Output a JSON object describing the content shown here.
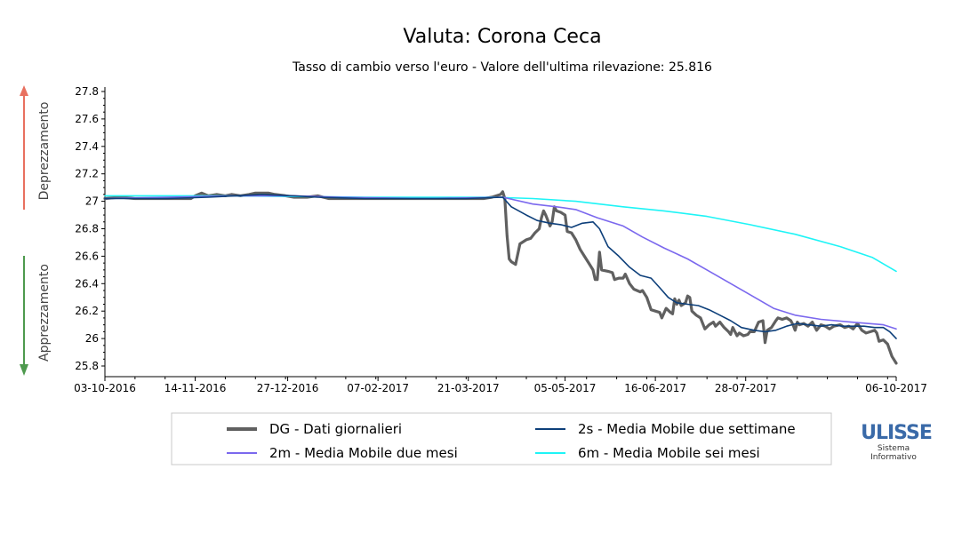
{
  "chart_data": {
    "type": "line",
    "title": "Valuta: Corona Ceca",
    "subtitle": "Tasso di cambio verso l'euro - Valore dell'ultima rilevazione: 25.816",
    "y_label_up": "Deprezzamento",
    "y_label_down": "Apprezzamento",
    "ylim": [
      25.75,
      27.82
    ],
    "y_ticks": [
      27.8,
      27.6,
      27.4,
      27.2,
      27.0,
      26.8,
      26.6,
      26.4,
      26.2,
      26.0,
      25.8
    ],
    "y_tick_labels": [
      "27.8",
      "27.6",
      "27.4",
      "27.2",
      "27",
      "26.8",
      "26.6",
      "26.4",
      "26.2",
      "26",
      "25.8"
    ],
    "xlim": [
      "2016-10-03",
      "2017-10-06"
    ],
    "x_ticks": [
      "2016-10-03",
      "2016-11-14",
      "2016-12-27",
      "2017-02-07",
      "2017-03-21",
      "2017-05-05",
      "2017-06-16",
      "2017-07-28",
      "2017-10-06"
    ],
    "x_tick_labels": [
      "03-10-2016",
      "14-11-2016",
      "27-12-2016",
      "07-02-2017",
      "21-03-2017",
      "05-05-2017",
      "16-06-2017",
      "28-07-2017",
      "06-10-2017"
    ],
    "grid": false,
    "legend_position": "bottom",
    "series": [
      {
        "key": "DG",
        "name": "DG - Dati giornalieri",
        "color": "#606060",
        "points": [
          [
            "2016-10-03",
            27.02
          ],
          [
            "2016-10-10",
            27.03
          ],
          [
            "2016-10-17",
            27.02
          ],
          [
            "2016-10-24",
            27.02
          ],
          [
            "2016-10-31",
            27.02
          ],
          [
            "2016-11-07",
            27.02
          ],
          [
            "2016-11-12",
            27.02
          ],
          [
            "2016-11-14",
            27.04
          ],
          [
            "2016-11-17",
            27.06
          ],
          [
            "2016-11-20",
            27.04
          ],
          [
            "2016-11-24",
            27.05
          ],
          [
            "2016-11-28",
            27.04
          ],
          [
            "2016-12-01",
            27.05
          ],
          [
            "2016-12-05",
            27.04
          ],
          [
            "2016-12-09",
            27.05
          ],
          [
            "2016-12-12",
            27.06
          ],
          [
            "2016-12-18",
            27.06
          ],
          [
            "2016-12-21",
            27.05
          ],
          [
            "2016-12-26",
            27.04
          ],
          [
            "2016-12-30",
            27.03
          ],
          [
            "2017-01-05",
            27.03
          ],
          [
            "2017-01-10",
            27.04
          ],
          [
            "2017-01-15",
            27.02
          ],
          [
            "2017-01-25",
            27.02
          ],
          [
            "2017-02-05",
            27.02
          ],
          [
            "2017-02-20",
            27.02
          ],
          [
            "2017-03-05",
            27.02
          ],
          [
            "2017-03-20",
            27.02
          ],
          [
            "2017-03-28",
            27.02
          ],
          [
            "2017-04-01",
            27.03
          ],
          [
            "2017-04-05",
            27.05
          ],
          [
            "2017-04-06",
            27.07
          ],
          [
            "2017-04-07",
            27.02
          ],
          [
            "2017-04-08",
            26.75
          ],
          [
            "2017-04-09",
            26.58
          ],
          [
            "2017-04-10",
            26.56
          ],
          [
            "2017-04-12",
            26.54
          ],
          [
            "2017-04-14",
            26.69
          ],
          [
            "2017-04-17",
            26.72
          ],
          [
            "2017-04-19",
            26.73
          ],
          [
            "2017-04-21",
            26.77
          ],
          [
            "2017-04-23",
            26.8
          ],
          [
            "2017-04-24",
            26.88
          ],
          [
            "2017-04-25",
            26.93
          ],
          [
            "2017-04-26",
            26.9
          ],
          [
            "2017-04-27",
            26.86
          ],
          [
            "2017-04-28",
            26.82
          ],
          [
            "2017-04-29",
            26.85
          ],
          [
            "2017-04-30",
            26.96
          ],
          [
            "2017-05-01",
            26.93
          ],
          [
            "2017-05-03",
            26.92
          ],
          [
            "2017-05-05",
            26.9
          ],
          [
            "2017-05-06",
            26.78
          ],
          [
            "2017-05-08",
            26.77
          ],
          [
            "2017-05-10",
            26.72
          ],
          [
            "2017-05-12",
            26.65
          ],
          [
            "2017-05-14",
            26.6
          ],
          [
            "2017-05-16",
            26.55
          ],
          [
            "2017-05-18",
            26.5
          ],
          [
            "2017-05-19",
            26.43
          ],
          [
            "2017-05-20",
            26.43
          ],
          [
            "2017-05-21",
            26.63
          ],
          [
            "2017-05-22",
            26.5
          ],
          [
            "2017-05-25",
            26.49
          ],
          [
            "2017-05-27",
            26.48
          ],
          [
            "2017-05-28",
            26.43
          ],
          [
            "2017-05-30",
            26.44
          ],
          [
            "2017-06-01",
            26.44
          ],
          [
            "2017-06-02",
            26.47
          ],
          [
            "2017-06-04",
            26.4
          ],
          [
            "2017-06-06",
            26.36
          ],
          [
            "2017-06-09",
            26.34
          ],
          [
            "2017-06-10",
            26.35
          ],
          [
            "2017-06-12",
            26.3
          ],
          [
            "2017-06-14",
            26.21
          ],
          [
            "2017-06-16",
            26.2
          ],
          [
            "2017-06-18",
            26.19
          ],
          [
            "2017-06-19",
            26.15
          ],
          [
            "2017-06-21",
            26.22
          ],
          [
            "2017-06-23",
            26.19
          ],
          [
            "2017-06-24",
            26.18
          ],
          [
            "2017-06-25",
            26.29
          ],
          [
            "2017-06-26",
            26.25
          ],
          [
            "2017-06-27",
            26.28
          ],
          [
            "2017-06-28",
            26.24
          ],
          [
            "2017-06-30",
            26.26
          ],
          [
            "2017-07-01",
            26.31
          ],
          [
            "2017-07-02",
            26.3
          ],
          [
            "2017-07-03",
            26.2
          ],
          [
            "2017-07-05",
            26.17
          ],
          [
            "2017-07-07",
            26.15
          ],
          [
            "2017-07-09",
            26.07
          ],
          [
            "2017-07-11",
            26.1
          ],
          [
            "2017-07-13",
            26.12
          ],
          [
            "2017-07-14",
            26.09
          ],
          [
            "2017-07-16",
            26.12
          ],
          [
            "2017-07-18",
            26.08
          ],
          [
            "2017-07-20",
            26.05
          ],
          [
            "2017-07-21",
            26.03
          ],
          [
            "2017-07-22",
            26.08
          ],
          [
            "2017-07-24",
            26.02
          ],
          [
            "2017-07-25",
            26.04
          ],
          [
            "2017-07-27",
            26.02
          ],
          [
            "2017-07-29",
            26.03
          ],
          [
            "2017-07-30",
            26.05
          ],
          [
            "2017-08-01",
            26.05
          ],
          [
            "2017-08-03",
            26.12
          ],
          [
            "2017-08-05",
            26.13
          ],
          [
            "2017-08-06",
            25.97
          ],
          [
            "2017-08-07",
            26.06
          ],
          [
            "2017-08-09",
            26.08
          ],
          [
            "2017-08-11",
            26.13
          ],
          [
            "2017-08-12",
            26.15
          ],
          [
            "2017-08-14",
            26.14
          ],
          [
            "2017-08-16",
            26.15
          ],
          [
            "2017-08-18",
            26.13
          ],
          [
            "2017-08-19",
            26.1
          ],
          [
            "2017-08-20",
            26.06
          ],
          [
            "2017-08-21",
            26.12
          ],
          [
            "2017-08-22",
            26.1
          ],
          [
            "2017-08-24",
            26.11
          ],
          [
            "2017-08-26",
            26.09
          ],
          [
            "2017-08-28",
            26.12
          ],
          [
            "2017-08-30",
            26.06
          ],
          [
            "2017-09-01",
            26.1
          ],
          [
            "2017-09-03",
            26.09
          ],
          [
            "2017-09-05",
            26.07
          ],
          [
            "2017-09-07",
            26.09
          ],
          [
            "2017-09-10",
            26.1
          ],
          [
            "2017-09-12",
            26.08
          ],
          [
            "2017-09-14",
            26.09
          ],
          [
            "2017-09-16",
            26.07
          ],
          [
            "2017-09-18",
            26.11
          ],
          [
            "2017-09-20",
            26.06
          ],
          [
            "2017-09-22",
            26.04
          ],
          [
            "2017-09-24",
            26.05
          ],
          [
            "2017-09-26",
            26.06
          ],
          [
            "2017-09-27",
            26.04
          ],
          [
            "2017-09-28",
            25.98
          ],
          [
            "2017-09-30",
            25.99
          ],
          [
            "2017-10-02",
            25.96
          ],
          [
            "2017-10-04",
            25.87
          ],
          [
            "2017-10-06",
            25.82
          ]
        ]
      },
      {
        "key": "2s",
        "name": "2s - Media Mobile due settimane",
        "color": "#0d3f7a",
        "points": [
          [
            "2016-10-03",
            27.02
          ],
          [
            "2016-11-01",
            27.02
          ],
          [
            "2016-11-20",
            27.03
          ],
          [
            "2016-12-15",
            27.05
          ],
          [
            "2016-12-30",
            27.04
          ],
          [
            "2017-01-10",
            27.03
          ],
          [
            "2017-02-01",
            27.02
          ],
          [
            "2017-03-20",
            27.02
          ],
          [
            "2017-04-06",
            27.03
          ],
          [
            "2017-04-10",
            26.96
          ],
          [
            "2017-04-17",
            26.9
          ],
          [
            "2017-04-22",
            26.86
          ],
          [
            "2017-04-28",
            26.84
          ],
          [
            "2017-05-03",
            26.83
          ],
          [
            "2017-05-08",
            26.81
          ],
          [
            "2017-05-13",
            26.84
          ],
          [
            "2017-05-18",
            26.85
          ],
          [
            "2017-05-21",
            26.8
          ],
          [
            "2017-05-25",
            26.67
          ],
          [
            "2017-05-30",
            26.6
          ],
          [
            "2017-06-04",
            26.52
          ],
          [
            "2017-06-09",
            26.46
          ],
          [
            "2017-06-14",
            26.44
          ],
          [
            "2017-06-18",
            26.37
          ],
          [
            "2017-06-22",
            26.3
          ],
          [
            "2017-06-26",
            26.26
          ],
          [
            "2017-07-01",
            26.25
          ],
          [
            "2017-07-06",
            26.24
          ],
          [
            "2017-07-11",
            26.21
          ],
          [
            "2017-07-16",
            26.17
          ],
          [
            "2017-07-21",
            26.13
          ],
          [
            "2017-07-26",
            26.08
          ],
          [
            "2017-08-01",
            26.06
          ],
          [
            "2017-08-06",
            26.05
          ],
          [
            "2017-08-11",
            26.06
          ],
          [
            "2017-08-16",
            26.09
          ],
          [
            "2017-08-21",
            26.11
          ],
          [
            "2017-08-26",
            26.1
          ],
          [
            "2017-09-01",
            26.09
          ],
          [
            "2017-09-06",
            26.1
          ],
          [
            "2017-09-11",
            26.09
          ],
          [
            "2017-09-16",
            26.09
          ],
          [
            "2017-09-21",
            26.09
          ],
          [
            "2017-09-26",
            26.08
          ],
          [
            "2017-09-30",
            26.08
          ],
          [
            "2017-10-03",
            26.05
          ],
          [
            "2017-10-06",
            26.0
          ]
        ]
      },
      {
        "key": "2m",
        "name": "2m - Media Mobile due mesi",
        "color": "#7b68ee",
        "points": [
          [
            "2016-10-03",
            27.02
          ],
          [
            "2016-11-01",
            27.03
          ],
          [
            "2016-12-01",
            27.04
          ],
          [
            "2016-12-30",
            27.04
          ],
          [
            "2017-01-20",
            27.03
          ],
          [
            "2017-03-01",
            27.02
          ],
          [
            "2017-04-06",
            27.03
          ],
          [
            "2017-04-20",
            26.98
          ],
          [
            "2017-05-01",
            26.96
          ],
          [
            "2017-05-10",
            26.94
          ],
          [
            "2017-05-20",
            26.88
          ],
          [
            "2017-06-01",
            26.82
          ],
          [
            "2017-06-10",
            26.74
          ],
          [
            "2017-06-20",
            26.66
          ],
          [
            "2017-07-01",
            26.58
          ],
          [
            "2017-07-10",
            26.5
          ],
          [
            "2017-07-20",
            26.41
          ],
          [
            "2017-07-30",
            26.32
          ],
          [
            "2017-08-10",
            26.22
          ],
          [
            "2017-08-20",
            26.17
          ],
          [
            "2017-09-01",
            26.14
          ],
          [
            "2017-09-15",
            26.12
          ],
          [
            "2017-09-30",
            26.1
          ],
          [
            "2017-10-06",
            26.07
          ]
        ]
      },
      {
        "key": "6m",
        "name": "6m - Media Mobile sei mesi",
        "color": "#1ef4f6",
        "points": [
          [
            "2016-10-03",
            27.04
          ],
          [
            "2016-12-01",
            27.04
          ],
          [
            "2017-02-01",
            27.03
          ],
          [
            "2017-04-01",
            27.03
          ],
          [
            "2017-04-20",
            27.02
          ],
          [
            "2017-05-10",
            27.0
          ],
          [
            "2017-06-01",
            26.96
          ],
          [
            "2017-06-20",
            26.93
          ],
          [
            "2017-07-10",
            26.89
          ],
          [
            "2017-07-30",
            26.83
          ],
          [
            "2017-08-20",
            26.76
          ],
          [
            "2017-09-10",
            26.67
          ],
          [
            "2017-09-25",
            26.59
          ],
          [
            "2017-10-06",
            26.49
          ]
        ]
      }
    ]
  },
  "logo": {
    "brand": "ULISSE",
    "line1": "Sistema",
    "line2": "Informativo"
  }
}
